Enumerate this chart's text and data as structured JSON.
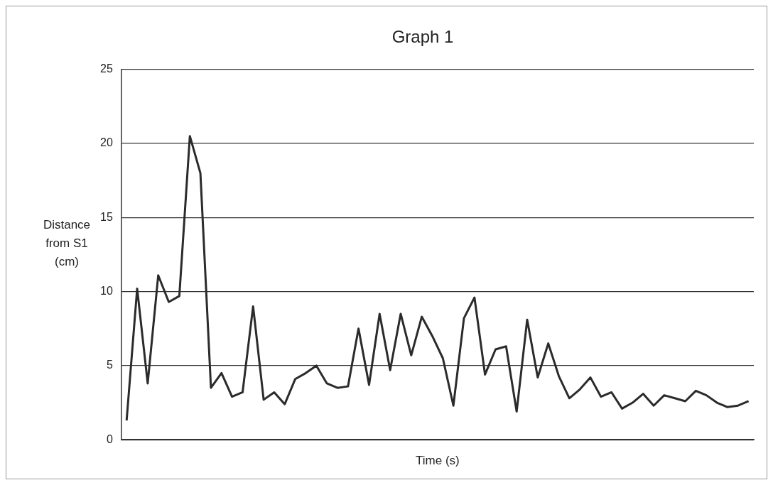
{
  "chart_data": {
    "type": "line",
    "title": "Graph 1",
    "xlabel": "Time (s)",
    "ylabel": "Distance from S1 (cm)",
    "categories": [
      null,
      null,
      null,
      null,
      null,
      null,
      null,
      null,
      null,
      null,
      null,
      null,
      null,
      null,
      null,
      null,
      null,
      null,
      null,
      null,
      null,
      null,
      null,
      null,
      null,
      null,
      null,
      null,
      null,
      null,
      null,
      null,
      null,
      null,
      null,
      null,
      null,
      null,
      null,
      null,
      null,
      null,
      null,
      null,
      null,
      null,
      null,
      null,
      null,
      null,
      null,
      null,
      null,
      null,
      null,
      null,
      null,
      null,
      null,
      null
    ],
    "series": [
      {
        "color": "#2b2b2b",
        "values": [
          1.3,
          10.2,
          3.8,
          11.1,
          9.3,
          9.7,
          20.5,
          18.0,
          3.5,
          4.5,
          2.9,
          3.2,
          9.0,
          2.7,
          3.2,
          2.4,
          4.1,
          4.5,
          5.0,
          3.8,
          3.5,
          3.6,
          7.5,
          3.7,
          8.5,
          4.7,
          8.5,
          5.7,
          8.3,
          7.0,
          5.5,
          2.3,
          8.2,
          9.6,
          4.4,
          6.1,
          6.3,
          1.9,
          8.1,
          4.2,
          6.5,
          4.3,
          2.8,
          3.4,
          4.2,
          2.9,
          3.2,
          2.1,
          2.5,
          3.1,
          2.3,
          3.0,
          2.8,
          2.6,
          3.3,
          3.0,
          2.5,
          2.2,
          2.3,
          2.6
        ]
      }
    ],
    "ylim": [
      0,
      25
    ],
    "yticks": [
      0,
      5,
      10,
      15,
      20,
      25
    ],
    "grid": "y",
    "legend": false,
    "marker": "none",
    "line_style": "solid"
  }
}
